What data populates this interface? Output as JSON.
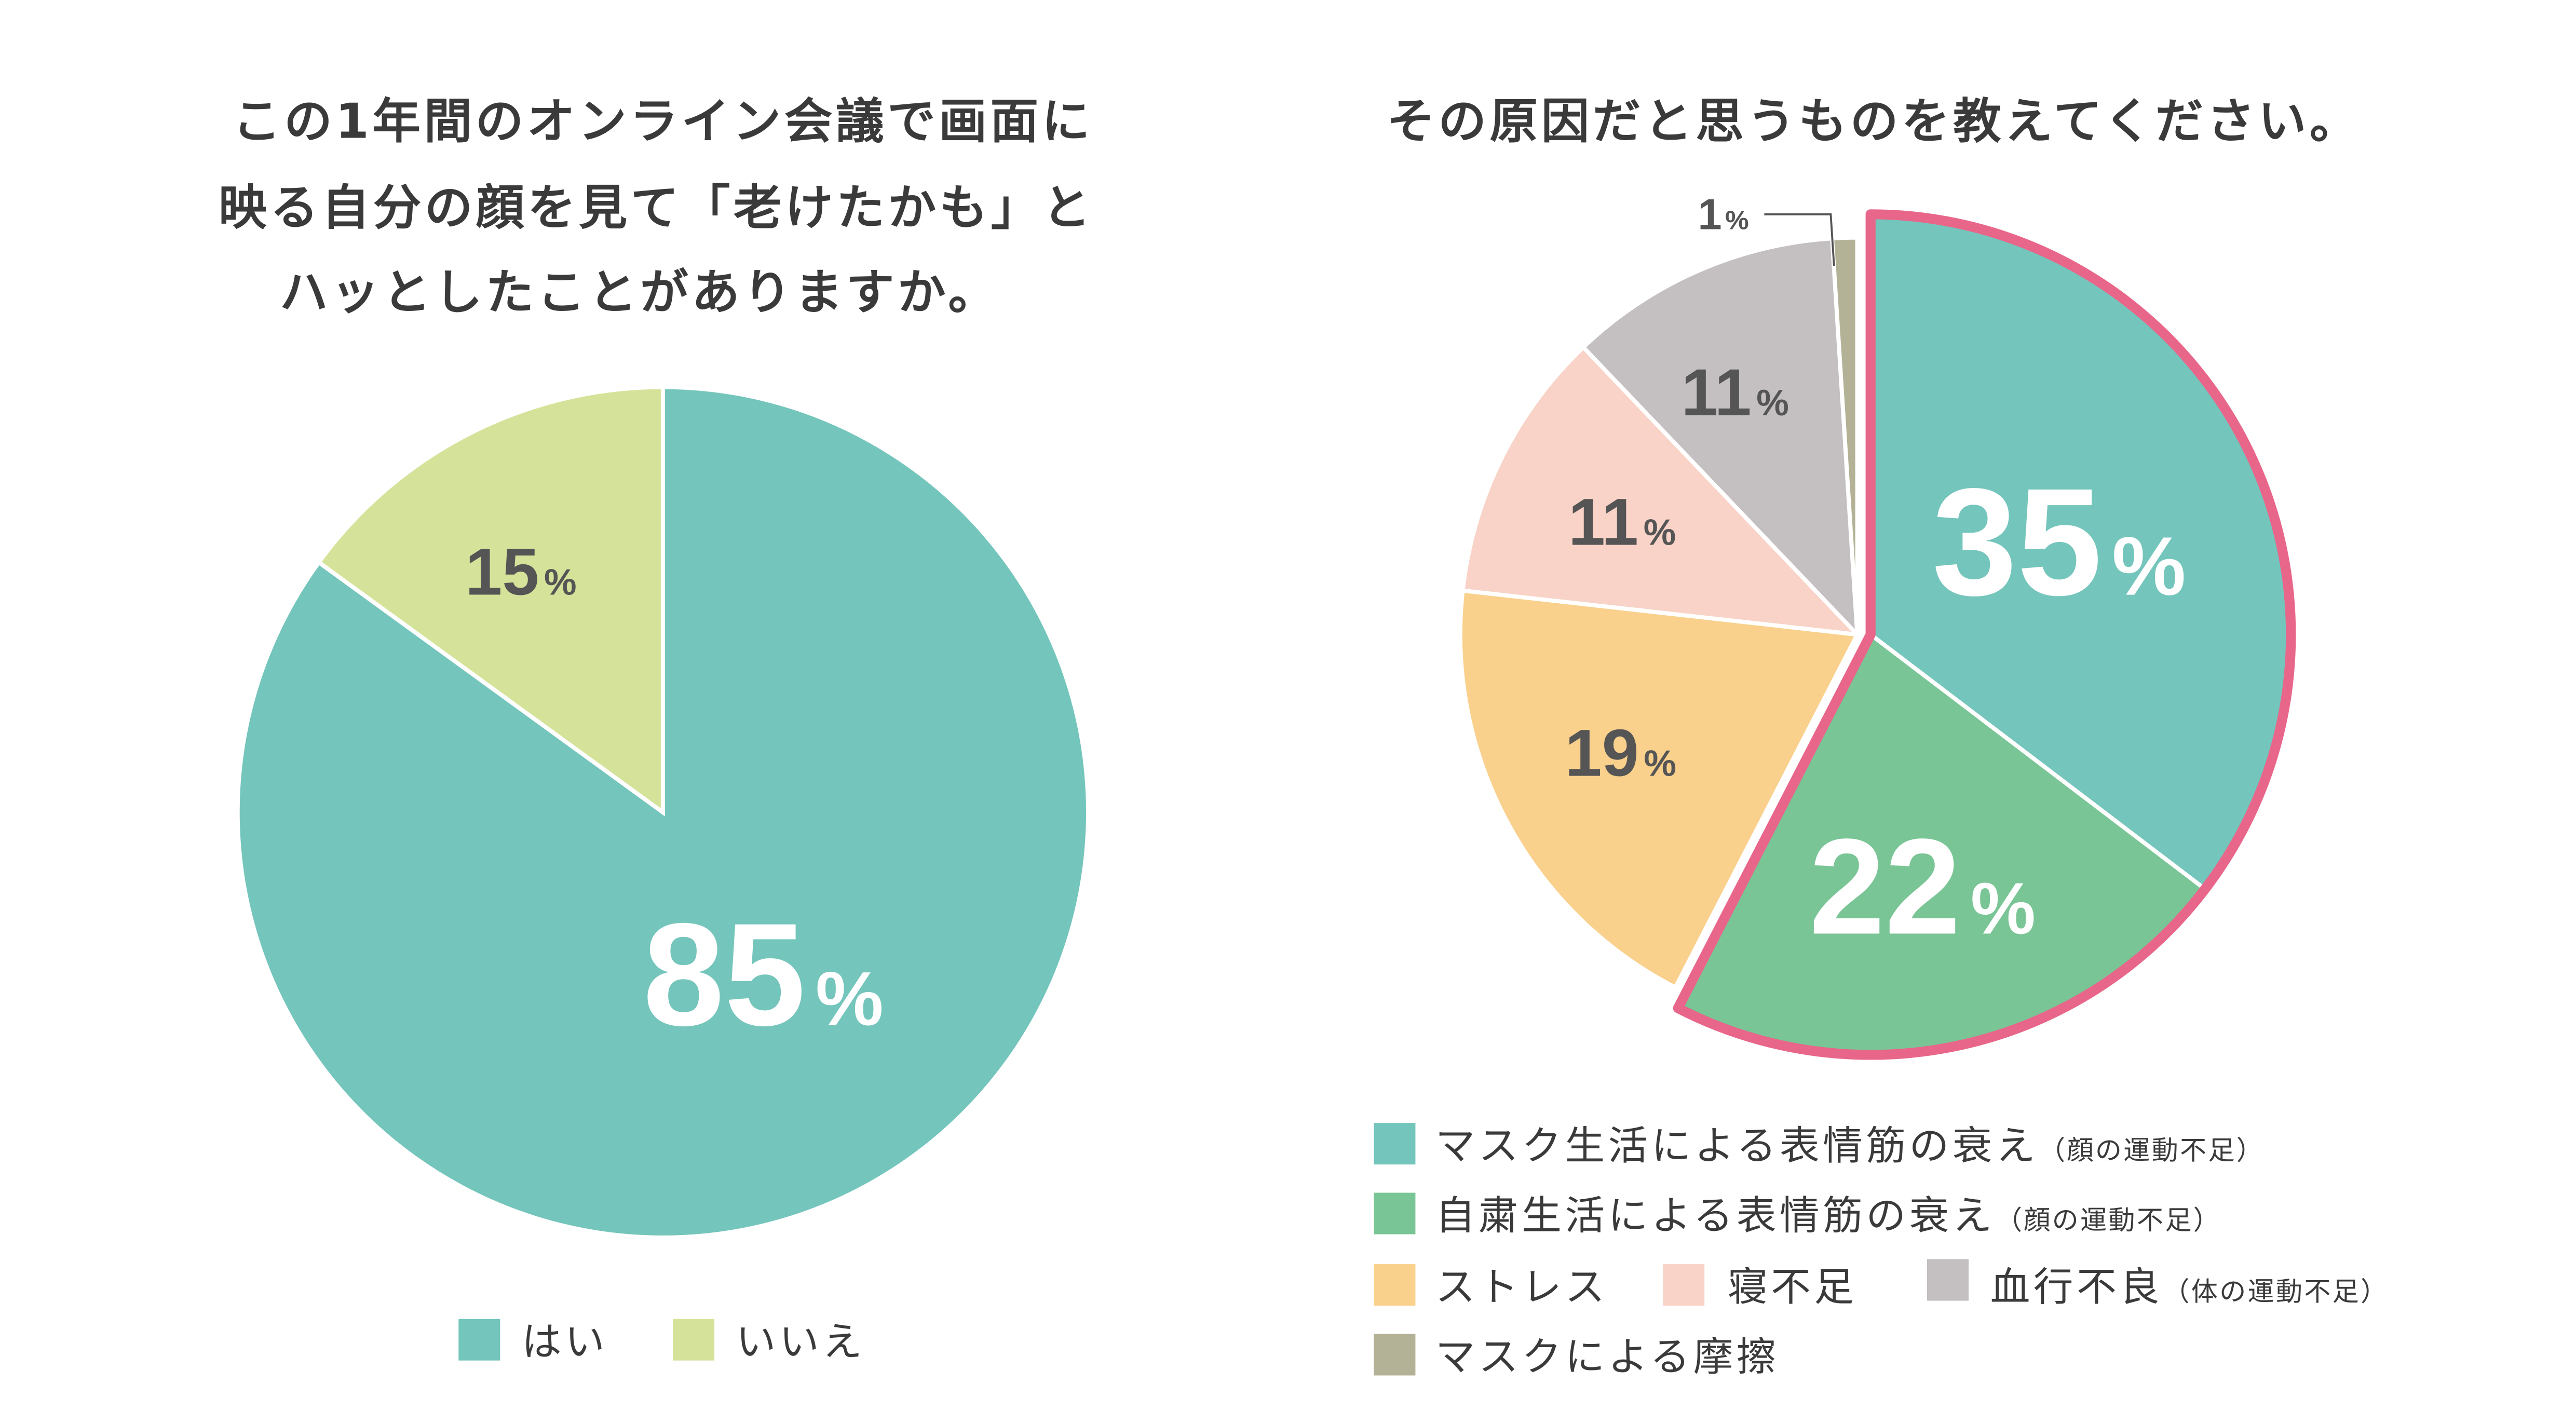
{
  "colors": {
    "text": "#3a3a3a",
    "highlight": "#e8668a"
  },
  "chart_data": [
    {
      "type": "pie",
      "title_lines": [
        "この1年間のオンライン会議で画面に",
        "映る自分の顔を見て「老けたかも」と",
        "ハッとしたことがありますか。"
      ],
      "categories": [
        "はい",
        "いいえ"
      ],
      "values": [
        85,
        15
      ],
      "colors": [
        "#74c5bc",
        "#d5e39a"
      ],
      "unit": "%",
      "legend_position": "bottom"
    },
    {
      "type": "pie",
      "title": "その原因だと思うものを教えてください。",
      "categories": [
        "マスク生活による表情筋の衰え",
        "自粛生活による表情筋の衰え",
        "ストレス",
        "寝不足",
        "血行不良",
        "マスクによる摩擦"
      ],
      "category_notes": [
        "（顔の運動不足）",
        "（顔の運動不足）",
        "",
        "",
        "（体の運動不足）",
        ""
      ],
      "values": [
        35,
        22,
        19,
        11,
        11,
        1
      ],
      "colors": [
        "#74c5bc",
        "#7ac596",
        "#f9d08c",
        "#f9d3c7",
        "#c4bfc0",
        "#b3b296"
      ],
      "highlighted": [
        0,
        1
      ],
      "unit": "%",
      "legend_position": "bottom"
    }
  ]
}
